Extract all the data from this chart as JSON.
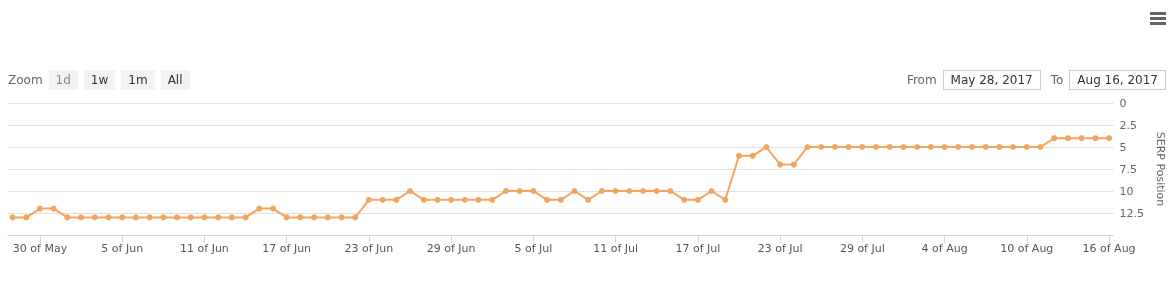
{
  "chart_data": {
    "type": "line",
    "ylabel": "SERP Position",
    "x": [
      "2017-05-28",
      "2017-05-29",
      "2017-05-30",
      "2017-05-31",
      "2017-06-01",
      "2017-06-02",
      "2017-06-03",
      "2017-06-04",
      "2017-06-05",
      "2017-06-06",
      "2017-06-07",
      "2017-06-08",
      "2017-06-09",
      "2017-06-10",
      "2017-06-11",
      "2017-06-12",
      "2017-06-13",
      "2017-06-14",
      "2017-06-15",
      "2017-06-16",
      "2017-06-17",
      "2017-06-18",
      "2017-06-19",
      "2017-06-20",
      "2017-06-21",
      "2017-06-22",
      "2017-06-23",
      "2017-06-24",
      "2017-06-25",
      "2017-06-26",
      "2017-06-27",
      "2017-06-28",
      "2017-06-29",
      "2017-06-30",
      "2017-07-01",
      "2017-07-02",
      "2017-07-03",
      "2017-07-04",
      "2017-07-05",
      "2017-07-06",
      "2017-07-07",
      "2017-07-08",
      "2017-07-09",
      "2017-07-10",
      "2017-07-11",
      "2017-07-12",
      "2017-07-13",
      "2017-07-14",
      "2017-07-15",
      "2017-07-16",
      "2017-07-17",
      "2017-07-18",
      "2017-07-19",
      "2017-07-20",
      "2017-07-21",
      "2017-07-22",
      "2017-07-23",
      "2017-07-24",
      "2017-07-25",
      "2017-07-26",
      "2017-07-27",
      "2017-07-28",
      "2017-07-29",
      "2017-07-30",
      "2017-07-31",
      "2017-08-01",
      "2017-08-02",
      "2017-08-03",
      "2017-08-04",
      "2017-08-05",
      "2017-08-06",
      "2017-08-07",
      "2017-08-08",
      "2017-08-09",
      "2017-08-10",
      "2017-08-11",
      "2017-08-12",
      "2017-08-13",
      "2017-08-14",
      "2017-08-15",
      "2017-08-16"
    ],
    "series": [
      {
        "color": "#f2a55e",
        "values": [
          13,
          13,
          12,
          12,
          13,
          13,
          13,
          13,
          13,
          13,
          13,
          13,
          13,
          13,
          13,
          13,
          13,
          13,
          12,
          12,
          13,
          13,
          13,
          13,
          13,
          13,
          11,
          11,
          11,
          10,
          11,
          11,
          11,
          11,
          11,
          11,
          10,
          10,
          10,
          11,
          11,
          10,
          11,
          10,
          10,
          10,
          10,
          10,
          10,
          11,
          11,
          10,
          11,
          6,
          6,
          5,
          7,
          7,
          5,
          5,
          5,
          5,
          5,
          5,
          5,
          5,
          5,
          5,
          5,
          5,
          5,
          5,
          5,
          5,
          5,
          5,
          4,
          4,
          4,
          4,
          4
        ]
      }
    ],
    "xlim": [
      "2017-05-27T16:00",
      "2017-08-16T08:00"
    ],
    "xticks": [
      {
        "value": "2017-05-30",
        "label": "30 of May"
      },
      {
        "value": "2017-06-05",
        "label": "5 of Jun"
      },
      {
        "value": "2017-06-11",
        "label": "11 of Jun"
      },
      {
        "value": "2017-06-17",
        "label": "17 of Jun"
      },
      {
        "value": "2017-06-23",
        "label": "23 of Jun"
      },
      {
        "value": "2017-06-29",
        "label": "29 of Jun"
      },
      {
        "value": "2017-07-05",
        "label": "5 of Jul"
      },
      {
        "value": "2017-07-11",
        "label": "11 of Jul"
      },
      {
        "value": "2017-07-17",
        "label": "17 of Jul"
      },
      {
        "value": "2017-07-23",
        "label": "23 of Jul"
      },
      {
        "value": "2017-07-29",
        "label": "29 of Jul"
      },
      {
        "value": "2017-08-04",
        "label": "4 of Aug"
      },
      {
        "value": "2017-08-10",
        "label": "10 of Aug"
      },
      {
        "value": "2017-08-16",
        "label": "16 of Aug"
      }
    ],
    "ylim": [
      15,
      0
    ],
    "yticks": [
      0,
      2.5,
      5,
      7.5,
      10,
      12.5
    ],
    "grid": "y",
    "marker": "circle",
    "line_style": "solid",
    "annotations": [
      "Zoom",
      "1d",
      "1w",
      "1m",
      "All",
      "From",
      "May 28, 2017",
      "To",
      "Aug 16, 2017"
    ]
  }
}
